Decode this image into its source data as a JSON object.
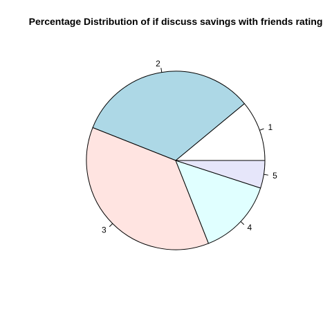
{
  "chart_data": {
    "type": "pie",
    "title": "Percentage Distribution of if discuss savings with friends rating",
    "categories": [
      "1",
      "2",
      "3",
      "4",
      "5"
    ],
    "values": [
      11,
      33,
      37,
      14,
      5
    ],
    "colors": [
      "#FFFFFF",
      "#ADD8E6",
      "#FFE4E1",
      "#E0FFFF",
      "#E6E6FA"
    ],
    "start_angle_deg": 0,
    "direction": "counterclockwise"
  }
}
